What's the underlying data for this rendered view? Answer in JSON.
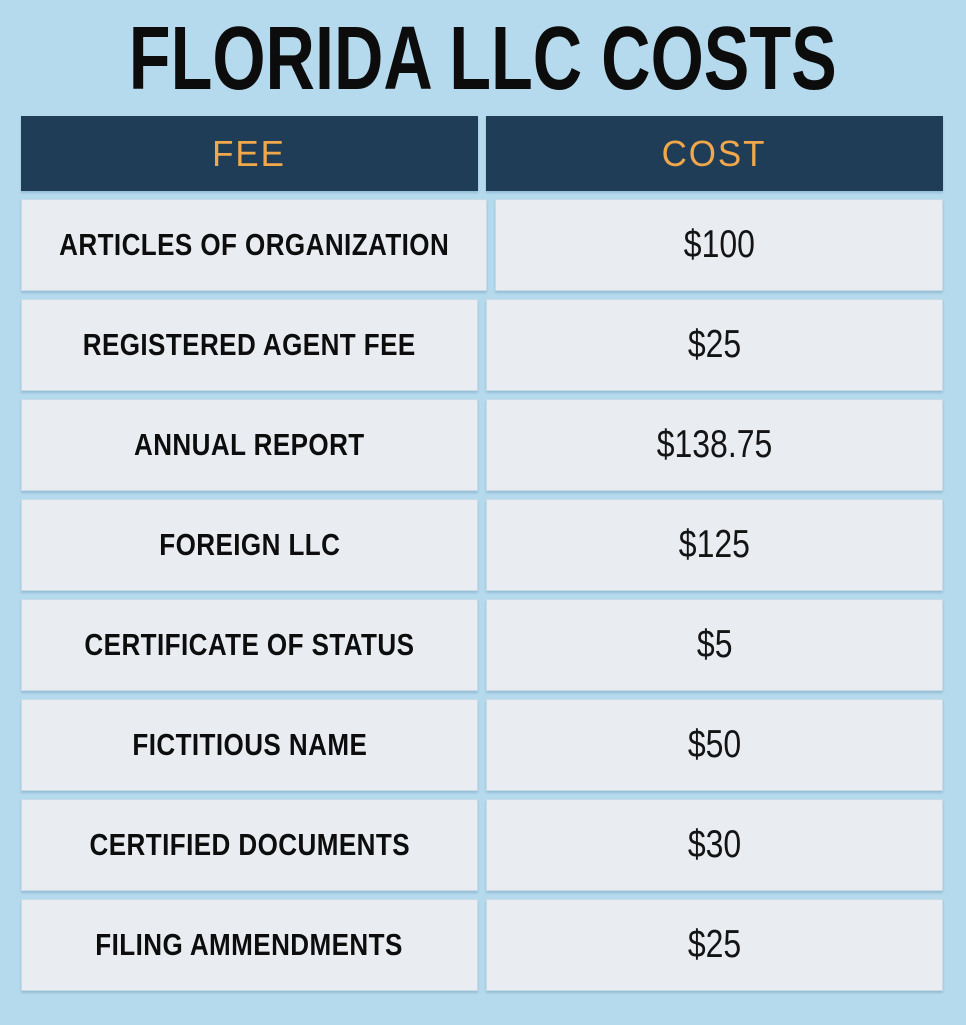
{
  "title": "FLORIDA LLC COSTS",
  "colors": {
    "page_bg": "#b5daed",
    "header_bg": "#203d58",
    "header_text": "#f0a84a",
    "cell_bg": "#e9edf2",
    "label_text": "#0d0d0d",
    "cost_text": "#141414"
  },
  "table": {
    "headers": [
      "FEE",
      "COST"
    ],
    "rows": [
      {
        "fee": "ARTICLES OF ORGANIZATION",
        "cost": "$100"
      },
      {
        "fee": "REGISTERED AGENT FEE",
        "cost": "$25"
      },
      {
        "fee": "ANNUAL REPORT",
        "cost": "$138.75"
      },
      {
        "fee": "FOREIGN LLC",
        "cost": "$125"
      },
      {
        "fee": "CERTIFICATE OF STATUS",
        "cost": "$5"
      },
      {
        "fee": "FICTITIOUS NAME",
        "cost": "$50"
      },
      {
        "fee": "CERTIFIED DOCUMENTS",
        "cost": "$30"
      },
      {
        "fee": "FILING AMMENDMENTS",
        "cost": "$25"
      }
    ]
  },
  "chart_data": {
    "type": "table",
    "title": "FLORIDA LLC COSTS",
    "columns": [
      "FEE",
      "COST"
    ],
    "categories": [
      "ARTICLES OF ORGANIZATION",
      "REGISTERED AGENT FEE",
      "ANNUAL REPORT",
      "FOREIGN LLC",
      "CERTIFICATE OF STATUS",
      "FICTITIOUS NAME",
      "CERTIFIED DOCUMENTS",
      "FILING AMMENDMENTS"
    ],
    "values": [
      100,
      25,
      138.75,
      125,
      5,
      50,
      30,
      25
    ],
    "currency": "USD"
  }
}
